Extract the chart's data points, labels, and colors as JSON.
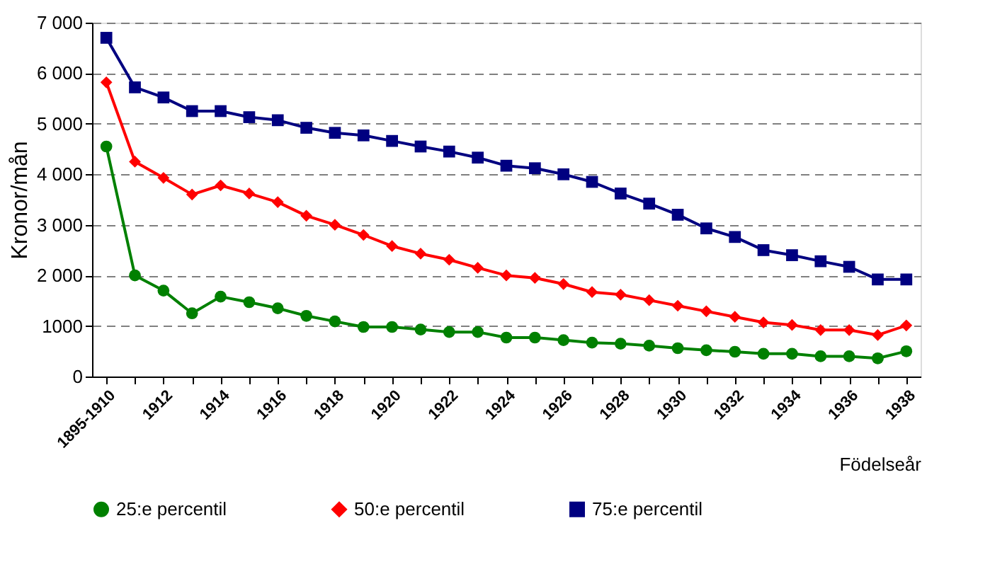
{
  "chart_data": {
    "type": "line",
    "xlabel": "Födelseår",
    "ylabel": "Kronor/mån",
    "categories": [
      "1895-1910",
      null,
      "1912",
      null,
      "1914",
      null,
      "1916",
      null,
      "1918",
      null,
      "1920",
      null,
      "1922",
      null,
      "1924",
      null,
      "1926",
      null,
      "1928",
      null,
      "1930",
      null,
      "1932",
      null,
      "1934",
      null,
      "1936",
      null,
      "1938"
    ],
    "series": [
      {
        "name": "25:e percentil",
        "color": "#008000",
        "marker": "circle",
        "values": [
          4550,
          2000,
          1700,
          1250,
          1580,
          1470,
          1350,
          1200,
          1090,
          980,
          980,
          930,
          880,
          880,
          770,
          770,
          720,
          670,
          650,
          610,
          560,
          520,
          490,
          450,
          450,
          400,
          400,
          360,
          500
        ]
      },
      {
        "name": "50:e percentil",
        "color": "#ff0000",
        "marker": "diamond",
        "values": [
          5820,
          4250,
          3930,
          3600,
          3780,
          3620,
          3450,
          3180,
          3000,
          2800,
          2580,
          2430,
          2310,
          2150,
          2000,
          1950,
          1830,
          1670,
          1620,
          1510,
          1400,
          1290,
          1180,
          1070,
          1020,
          920,
          920,
          820,
          1010
        ]
      },
      {
        "name": "75:e percentil",
        "color": "#000080",
        "marker": "square",
        "values": [
          6700,
          5720,
          5520,
          5250,
          5250,
          5130,
          5070,
          4920,
          4820,
          4770,
          4660,
          4550,
          4450,
          4330,
          4170,
          4120,
          4000,
          3850,
          3620,
          3420,
          3200,
          2930,
          2760,
          2500,
          2400,
          2280,
          2170,
          1920,
          1920
        ]
      }
    ],
    "ylim": [
      0,
      7000
    ],
    "yticks": [
      0,
      {
        "value": 1000,
        "label": "1000"
      },
      {
        "value": 2000,
        "label": "2 000"
      },
      {
        "value": 3000,
        "label": "3 000"
      },
      {
        "value": 4000,
        "label": "4 000"
      },
      {
        "value": 5000,
        "label": "5 000"
      },
      {
        "value": 6000,
        "label": "6 000"
      },
      {
        "value": 7000,
        "label": "7 000"
      }
    ],
    "grid": "y",
    "legend": "bottom",
    "line_style": "solid"
  }
}
